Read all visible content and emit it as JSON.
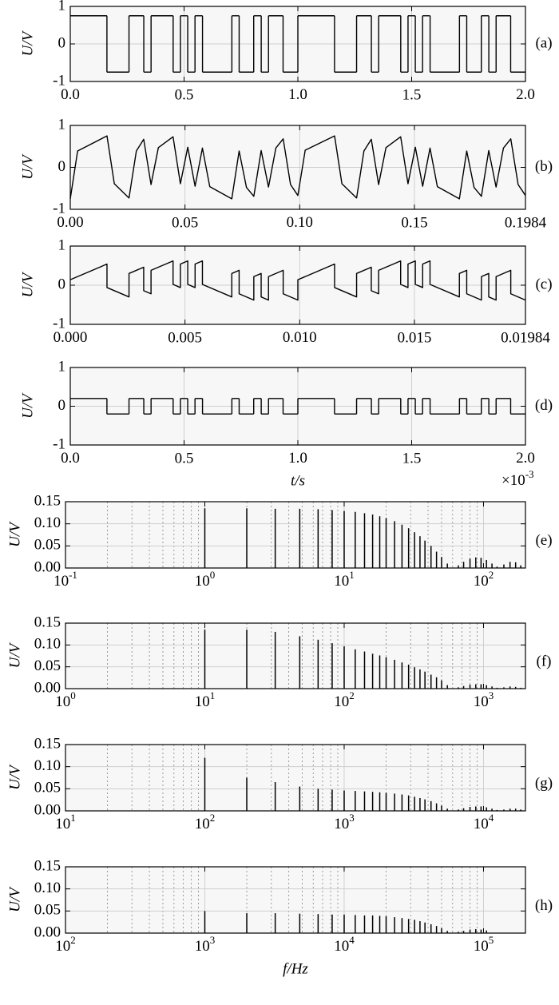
{
  "chart_data": [
    {
      "type": "step",
      "panel_label": "(a)",
      "ylabel": "U/V",
      "color": "#000000",
      "grid": true,
      "xlim": [
        0,
        2.0
      ],
      "ylim": [
        -1,
        1
      ],
      "xticks": [
        {
          "value": 0,
          "label": "0.0"
        },
        0.5,
        {
          "value": 1,
          "label": "1.0"
        },
        1.5,
        {
          "value": 2,
          "label": "2.0"
        }
      ],
      "yticks": [
        -1,
        0,
        1
      ],
      "x": [
        0,
        0.161,
        0.258,
        0.323,
        0.355,
        0.452,
        0.484,
        0.516,
        0.548,
        0.581,
        0.71,
        0.742,
        0.806,
        0.839,
        0.871,
        0.935,
        1.0,
        1.161,
        1.258,
        1.323,
        1.355,
        1.452,
        1.484,
        1.516,
        1.548,
        1.581,
        1.71,
        1.742,
        1.806,
        1.839,
        1.871,
        1.935
      ],
      "values": [
        0.75,
        -0.75,
        0.75,
        -0.75,
        0.75,
        -0.75,
        0.75,
        -0.75,
        0.75,
        -0.75,
        0.75,
        -0.75,
        0.75,
        -0.75,
        0.75,
        -0.75,
        0.75,
        -0.75,
        0.75,
        -0.75,
        0.75,
        -0.75,
        0.75,
        -0.75,
        0.75,
        -0.75,
        0.75,
        -0.75,
        0.75,
        -0.75,
        0.75,
        -0.75
      ]
    },
    {
      "type": "line",
      "panel_label": "(b)",
      "ylabel": "U/V",
      "color": "#000000",
      "grid": true,
      "xlim": [
        0,
        0.1984
      ],
      "ylim": [
        -1,
        1
      ],
      "xticks": [
        {
          "value": 0,
          "label": "0.00"
        },
        0.05,
        {
          "value": 0.1,
          "label": "0.10"
        },
        0.15,
        0.1984
      ],
      "yticks": [
        -1,
        0,
        1
      ],
      "x": [
        0,
        0.0032,
        0.016,
        0.0192,
        0.0256,
        0.0288,
        0.032,
        0.0352,
        0.0384,
        0.0448,
        0.048,
        0.0512,
        0.0544,
        0.0576,
        0.0608,
        0.0704,
        0.0736,
        0.0768,
        0.08,
        0.0832,
        0.0864,
        0.0896,
        0.0928,
        0.096,
        0.0992,
        0.1024,
        0.1152,
        0.1184,
        0.1248,
        0.128,
        0.1312,
        0.1344,
        0.1376,
        0.144,
        0.1472,
        0.1504,
        0.1536,
        0.1568,
        0.16,
        0.1696,
        0.1728,
        0.176,
        0.1792,
        0.1824,
        0.1856,
        0.1888,
        0.192,
        0.1952,
        0.1984
      ],
      "values": [
        -0.75,
        0.39,
        0.75,
        -0.39,
        -0.73,
        0.39,
        0.67,
        -0.41,
        0.47,
        0.73,
        -0.39,
        0.48,
        -0.45,
        0.46,
        -0.46,
        -0.75,
        0.39,
        -0.48,
        -0.69,
        0.4,
        -0.47,
        0.46,
        0.68,
        -0.41,
        -0.67,
        0.41,
        0.75,
        -0.39,
        -0.73,
        0.39,
        0.67,
        -0.41,
        0.47,
        0.73,
        -0.39,
        0.48,
        -0.45,
        0.46,
        -0.46,
        -0.75,
        0.39,
        -0.48,
        -0.69,
        0.4,
        -0.47,
        0.46,
        0.68,
        -0.41,
        -0.67
      ]
    },
    {
      "type": "line",
      "panel_label": "(c)",
      "ylabel": "U/V",
      "color": "#000000",
      "grid": true,
      "xlim": [
        0,
        0.01984
      ],
      "ylim": [
        -1,
        1
      ],
      "xticks": [
        {
          "value": 0,
          "label": "0.000"
        },
        0.005,
        {
          "value": 0.01,
          "label": "0.010"
        },
        0.015,
        0.01984
      ],
      "yticks": [
        -1,
        0,
        1
      ],
      "x": [
        0,
        0.0016,
        0.0016,
        0.00256,
        0.00256,
        0.0032,
        0.0032,
        0.00352,
        0.00352,
        0.00448,
        0.00448,
        0.0048,
        0.0048,
        0.00512,
        0.00512,
        0.00544,
        0.00544,
        0.00576,
        0.00576,
        0.00704,
        0.00704,
        0.00736,
        0.00736,
        0.008,
        0.008,
        0.00832,
        0.00832,
        0.00864,
        0.00864,
        0.00928,
        0.00928,
        0.00992,
        0.00992,
        0.01152,
        0.01152,
        0.01248,
        0.01248,
        0.01312,
        0.01312,
        0.01344,
        0.01344,
        0.0144,
        0.0144,
        0.01472,
        0.01472,
        0.01504,
        0.01504,
        0.01536,
        0.01536,
        0.01568,
        0.01568,
        0.01696,
        0.01696,
        0.01728,
        0.01728,
        0.01792,
        0.01792,
        0.01824,
        0.01824,
        0.01856,
        0.01856,
        0.0192,
        0.0192,
        0.01984
      ],
      "values": [
        0.14,
        0.54,
        -0.06,
        -0.3,
        0.3,
        0.46,
        -0.14,
        -0.22,
        0.38,
        0.62,
        0.02,
        -0.06,
        0.54,
        0.62,
        0.02,
        -0.06,
        0.54,
        0.62,
        0.02,
        -0.3,
        0.3,
        0.38,
        -0.22,
        -0.38,
        0.22,
        0.3,
        -0.3,
        -0.38,
        0.22,
        0.38,
        -0.22,
        -0.38,
        0.14,
        0.54,
        -0.06,
        -0.3,
        0.3,
        0.46,
        -0.14,
        -0.22,
        0.38,
        0.62,
        0.02,
        -0.06,
        0.54,
        0.62,
        0.02,
        -0.06,
        0.54,
        0.62,
        0.02,
        -0.3,
        0.3,
        0.38,
        -0.22,
        -0.38,
        0.22,
        0.3,
        -0.3,
        -0.38,
        0.22,
        0.38,
        -0.22,
        -0.38
      ]
    },
    {
      "type": "step",
      "panel_label": "(d)",
      "ylabel": "U/V",
      "xlabel": "t/s",
      "x_offset": {
        "label": "×10",
        "exponent": "-3"
      },
      "color": "#000000",
      "grid": true,
      "xlim": [
        0,
        2.0
      ],
      "ylim": [
        -1,
        1
      ],
      "xticks": [
        {
          "value": 0,
          "label": "0.0"
        },
        0.5,
        {
          "value": 1,
          "label": "1.0"
        },
        1.5,
        {
          "value": 2,
          "label": "2.0"
        }
      ],
      "yticks": [
        -1,
        0,
        1
      ],
      "x": [
        0,
        0.161,
        0.258,
        0.323,
        0.355,
        0.452,
        0.484,
        0.516,
        0.548,
        0.581,
        0.71,
        0.742,
        0.806,
        0.839,
        0.871,
        0.935,
        1.0,
        1.161,
        1.258,
        1.323,
        1.355,
        1.452,
        1.484,
        1.516,
        1.548,
        1.581,
        1.71,
        1.742,
        1.806,
        1.839,
        1.871,
        1.935
      ],
      "values": [
        0.2,
        -0.2,
        0.2,
        -0.2,
        0.2,
        -0.2,
        0.2,
        -0.2,
        0.2,
        -0.2,
        0.2,
        -0.2,
        0.2,
        -0.2,
        0.2,
        -0.2,
        0.2,
        -0.2,
        0.2,
        -0.2,
        0.2,
        -0.2,
        0.2,
        -0.2,
        0.2,
        -0.2,
        0.2,
        -0.2,
        0.2,
        -0.2,
        0.2,
        -0.2
      ]
    },
    {
      "type": "stem",
      "panel_label": "(e)",
      "ylabel": "U/V",
      "color": "#000000",
      "grid": true,
      "log_x": true,
      "minor_grid": true,
      "xlim": [
        0.1,
        200
      ],
      "ylim": [
        0,
        0.15
      ],
      "xticks": [
        {
          "value": 0.1,
          "label": "10",
          "exponent": "-1"
        },
        {
          "value": 1,
          "label": "10",
          "exponent": "0"
        },
        {
          "value": 10,
          "label": "10",
          "exponent": "1"
        },
        {
          "value": 100,
          "label": "10",
          "exponent": "2"
        }
      ],
      "yticks": [
        {
          "value": 0,
          "label": "0.00"
        },
        0.05,
        {
          "value": 0.1,
          "label": "0.10"
        },
        0.15
      ],
      "x": [
        1,
        2,
        3.2,
        4.8,
        6.5,
        8.2,
        10,
        12,
        14,
        16,
        18,
        20,
        23,
        26,
        29,
        32,
        35,
        38,
        42,
        46,
        50,
        55,
        60,
        66,
        72,
        80,
        88,
        96,
        105,
        115,
        125,
        140,
        155,
        170,
        185
      ],
      "values": [
        0.135,
        0.135,
        0.134,
        0.134,
        0.133,
        0.131,
        0.129,
        0.127,
        0.124,
        0.121,
        0.117,
        0.113,
        0.106,
        0.098,
        0.09,
        0.081,
        0.072,
        0.062,
        0.05,
        0.037,
        0.025,
        0.01,
        0.001,
        0.006,
        0.014,
        0.021,
        0.024,
        0.023,
        0.018,
        0.01,
        0.003,
        0.008,
        0.014,
        0.013,
        0.006
      ]
    },
    {
      "type": "stem",
      "panel_label": "(f)",
      "ylabel": "U/V",
      "color": "#000000",
      "grid": true,
      "log_x": true,
      "minor_grid": true,
      "xlim": [
        1,
        2000
      ],
      "ylim": [
        0,
        0.15
      ],
      "xticks": [
        {
          "value": 1,
          "label": "10",
          "exponent": "0"
        },
        {
          "value": 10,
          "label": "10",
          "exponent": "1"
        },
        {
          "value": 100,
          "label": "10",
          "exponent": "2"
        },
        {
          "value": 1000,
          "label": "10",
          "exponent": "3"
        }
      ],
      "yticks": [
        {
          "value": 0,
          "label": "0.00"
        },
        0.05,
        {
          "value": 0.1,
          "label": "0.10"
        },
        0.15
      ],
      "x": [
        10,
        20,
        32,
        48,
        65,
        82,
        100,
        120,
        140,
        160,
        180,
        200,
        230,
        260,
        290,
        320,
        350,
        380,
        420,
        460,
        500,
        550,
        600,
        660,
        720,
        800,
        880,
        960,
        1050,
        1150,
        1250,
        1400,
        1550,
        1700,
        1850
      ],
      "values": [
        0.135,
        0.135,
        0.13,
        0.12,
        0.112,
        0.104,
        0.097,
        0.09,
        0.085,
        0.08,
        0.076,
        0.072,
        0.066,
        0.06,
        0.055,
        0.049,
        0.044,
        0.039,
        0.032,
        0.026,
        0.019,
        0.008,
        0.001,
        0.003,
        0.006,
        0.009,
        0.01,
        0.01,
        0.008,
        0.005,
        0.002,
        0.003,
        0.005,
        0.004,
        0.002
      ]
    },
    {
      "type": "stem",
      "panel_label": "(g)",
      "ylabel": "U/V",
      "color": "#000000",
      "grid": true,
      "log_x": true,
      "minor_grid": true,
      "xlim": [
        10,
        20000
      ],
      "ylim": [
        0,
        0.15
      ],
      "xticks": [
        {
          "value": 10,
          "label": "10",
          "exponent": "1"
        },
        {
          "value": 100,
          "label": "10",
          "exponent": "2"
        },
        {
          "value": 1000,
          "label": "10",
          "exponent": "3"
        },
        {
          "value": 10000,
          "label": "10",
          "exponent": "4"
        }
      ],
      "yticks": [
        {
          "value": 0,
          "label": "0.00"
        },
        0.05,
        {
          "value": 0.1,
          "label": "0.10"
        },
        0.15
      ],
      "x": [
        100,
        200,
        320,
        480,
        650,
        820,
        1000,
        1200,
        1400,
        1600,
        1800,
        2000,
        2300,
        2600,
        2900,
        3200,
        3500,
        3800,
        4200,
        4600,
        5000,
        5500,
        6000,
        6600,
        7200,
        8000,
        8800,
        9600,
        10500,
        11500,
        12500,
        14000,
        15500,
        17000,
        18500
      ],
      "values": [
        0.12,
        0.075,
        0.065,
        0.055,
        0.05,
        0.048,
        0.046,
        0.045,
        0.044,
        0.043,
        0.042,
        0.041,
        0.039,
        0.037,
        0.035,
        0.032,
        0.029,
        0.026,
        0.022,
        0.017,
        0.012,
        0.005,
        0.001,
        0.003,
        0.006,
        0.009,
        0.01,
        0.01,
        0.008,
        0.005,
        0.002,
        0.003,
        0.005,
        0.005,
        0.003
      ]
    },
    {
      "type": "stem",
      "panel_label": "(h)",
      "ylabel": "U/V",
      "xlabel": "f/Hz",
      "color": "#000000",
      "grid": true,
      "log_x": true,
      "minor_grid": true,
      "xlim": [
        100,
        200000
      ],
      "ylim": [
        0,
        0.15
      ],
      "xticks": [
        {
          "value": 100,
          "label": "10",
          "exponent": "2"
        },
        {
          "value": 1000,
          "label": "10",
          "exponent": "3"
        },
        {
          "value": 10000,
          "label": "10",
          "exponent": "4"
        },
        {
          "value": 100000,
          "label": "10",
          "exponent": "5"
        }
      ],
      "yticks": [
        {
          "value": 0,
          "label": "0.00"
        },
        0.05,
        {
          "value": 0.1,
          "label": "0.10"
        },
        0.15
      ],
      "x": [
        1000,
        2000,
        3200,
        4800,
        6500,
        8200,
        10000,
        12000,
        14000,
        16000,
        18000,
        20000,
        23000,
        26000,
        29000,
        32000,
        35000,
        38000,
        42000,
        46000,
        50000,
        55000,
        60000,
        66000,
        72000,
        80000,
        88000,
        96000,
        105000
      ],
      "values": [
        0.05,
        0.045,
        0.045,
        0.044,
        0.043,
        0.042,
        0.042,
        0.041,
        0.04,
        0.04,
        0.039,
        0.038,
        0.036,
        0.034,
        0.032,
        0.03,
        0.027,
        0.024,
        0.02,
        0.016,
        0.011,
        0.005,
        0.001,
        0.003,
        0.005,
        0.008,
        0.009,
        0.008,
        0.006
      ]
    }
  ]
}
